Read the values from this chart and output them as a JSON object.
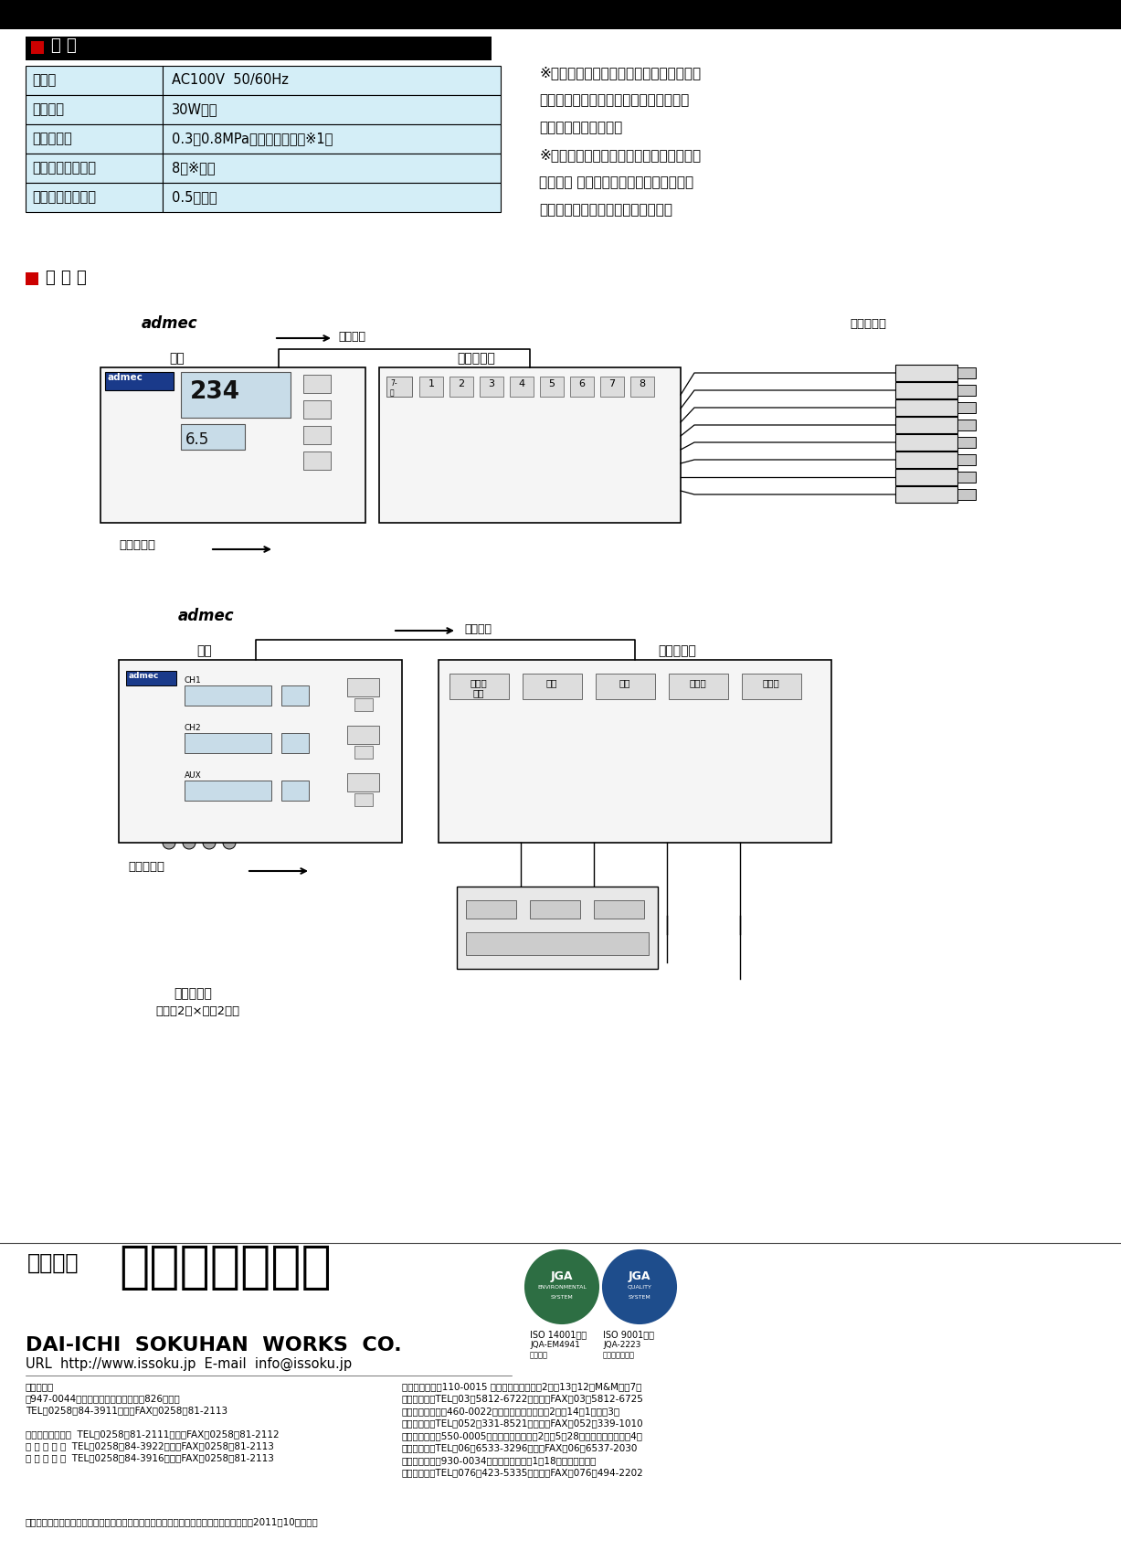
{
  "bg_color": "#ffffff",
  "black": "#000000",
  "red_color": "#cc0000",
  "light_blue": "#d4eef7",
  "gray_light": "#e8e8e8",
  "gray_mid": "#c8c8c8",
  "gray_dark": "#888888",
  "spec_title": "仕 様",
  "spec_rows": [
    [
      "電　源",
      "AC100V  50/60Hz"
    ],
    [
      "消費電力",
      "30W以下"
    ],
    [
      "使用空気源",
      "0.3〜0.8MPa（制御エアー用※1）"
    ],
    [
      "測定ヘッド接続数",
      "8（※２）"
    ],
    [
      "切り替え応答時間",
      "0.5秒以下"
    ]
  ],
  "notes_right": [
    "※１セレクターに内蔵されているバルブを",
    "　駆動するための圧縮空気が測定用の空",
    "　気と別に必要です。",
    "※２１チャンネル仕様の場合です。２チャ",
    "　ンネル 仕様、８機種を超えるヘッドを",
    "　接続可能な仕様も製作可能です。"
  ],
  "section2_title": "接 続 例",
  "company_prefix": "株式会社",
  "company_name_kanji": "第一測範製作所",
  "company_name_roman": "DAI-ICHI  SOKUHAN  WORKS  CO.",
  "company_url": "URL  http://www.issoku.jp  E-mail  info@issoku.jp",
  "footer_address_left_line1": "本社・工場",
  "footer_address_left_line2": "〒947-0044　新潟県小千谷市大字坪野826番地２",
  "footer_address_left_line3": "TEL（0258）84-3911（代）FAX（0258）81-2113",
  "footer_address_left_line4": "ボールねじ事業部  TEL（0258）81-2111（代）FAX（0258）81-2112",
  "footer_address_left_line5": "海 外 営 業 課  TEL（0258）84-3922（代）FAX（0258）81-2113",
  "footer_address_left_line6": "本 社 営 業 所  TEL（0258）84-3916　　　FAX（0258）81-2113",
  "footer_address_right": [
    "東京営業所　〒110-0015 東京都台東区東上野2丁目13番12号M&Mビル7階",
    "　　　　　　TEL（03）5812-6722（代）　FAX（03）5812-6725",
    "名古屋営業所　〒460-0022　名古屋市中区金、山2丁目14番1号ビル3階",
    "　　　　　　TEL（052）331-8521（代）　FAX（052）339-1010",
    "大阪営業所　〒550-0005　大阪市西区西本町2丁目5番28号コスモ西本町ビル4階",
    "　　　　　　TEL（06）6533-3296（代）FAX（06）6537-2030",
    "北陸営業所　〒930-0034　富山市清水元町1番18号桑島ビル１階",
    "　　　　　　TEL（076）423-5335（代）　FAX（076）494-2202"
  ],
  "footer_note": "注：本カタログは改良のため、予告なしに外観・仕様などを変更することがあります。（2011年10月現在）",
  "iso1_text1": "ISO 14001認証",
  "iso1_text2": "JQA-EM4941",
  "iso1_text3": "本社工場",
  "iso2_text1": "ISO 9001認証",
  "iso2_text2": "JQA-2223",
  "iso2_text3": "登録活動範囲："
}
